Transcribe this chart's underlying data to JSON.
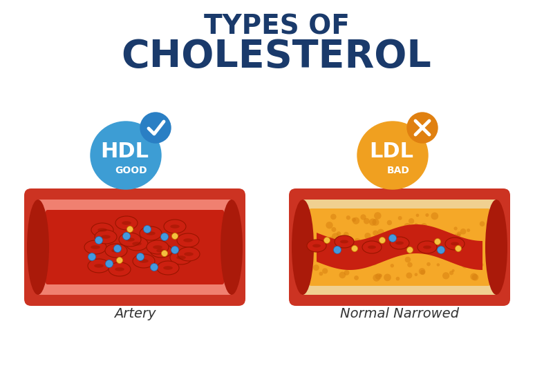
{
  "title_line1": "TYPES OF",
  "title_line2": "CHOLESTEROL",
  "title_color": "#1a3a6b",
  "bg_color": "#ffffff",
  "hdl_label": "HDL",
  "hdl_sublabel": "GOOD",
  "hdl_color": "#3d9dd4",
  "hdl_check_color": "#2a7fc4",
  "ldl_label": "LDL",
  "ldl_sublabel": "BAD",
  "ldl_color": "#f0a020",
  "ldl_x_color": "#e08010",
  "artery_label": "Artery",
  "narrowed_label": "Normal Narrowed",
  "label_color": "#333333",
  "vessel_outer_color": "#cc3322",
  "vessel_blood_color": "#c82010",
  "rbc_color": "#cc2010",
  "rbc_dark": "#991500",
  "hdl_particle_color": "#4499dd",
  "ldl_particle_color": "#f5c040"
}
